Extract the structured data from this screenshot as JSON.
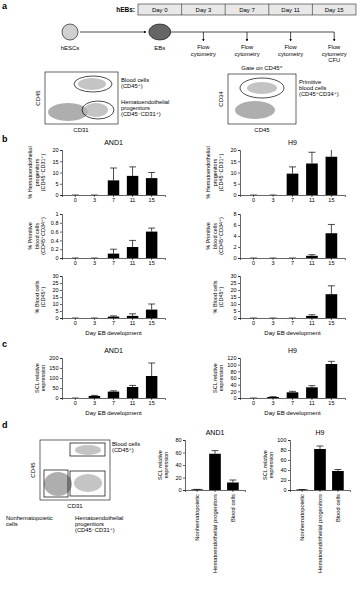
{
  "figure": {
    "panel_labels": [
      "a",
      "b",
      "c",
      "d"
    ],
    "schematic": {
      "header": "hEBs:",
      "days": [
        "Day 0",
        "Day 3",
        "Day 7",
        "Day 11",
        "Day 15"
      ],
      "start": "hESCs",
      "eb": "EBs",
      "steps": [
        [
          "Flow",
          "cytometry"
        ],
        [
          "Flow",
          "cytometry"
        ],
        [
          "Flow",
          "cytometry"
        ],
        [
          "Flow",
          "cytometry",
          "CFU"
        ]
      ]
    },
    "flow_a1": {
      "xlabel": "CD31",
      "ylabel": "CD45",
      "gates": [
        [
          "Blood cells",
          "(CD45⁺)"
        ],
        [
          "Hematoendothelial",
          "progenitors",
          "(CD45⁻CD31⁺)"
        ]
      ]
    },
    "flow_a2": {
      "title": "Gate on CD45⁺",
      "xlabel": "CD45",
      "ylabel": "CD34",
      "gates": [
        [
          "Primitive",
          "blood cells",
          "(CD45⁺CD34⁺)"
        ]
      ]
    },
    "flow_d": {
      "xlabel": "CD31",
      "ylabel": "CD45",
      "gates": [
        [
          "Blood cells",
          "(CD45⁺)"
        ],
        [
          "Hematoendothelial",
          "progenitors",
          "(CD45⁻CD31⁺)"
        ],
        [
          "Nonhematopoietic",
          "cells"
        ]
      ]
    }
  },
  "chart_data": [
    {
      "type": "bar",
      "title": "AND1",
      "categories": [
        "0",
        "3",
        "7",
        "11",
        "15"
      ],
      "values": [
        0,
        0,
        6.5,
        8.5,
        7.5
      ],
      "error": [
        0,
        0,
        5.5,
        4,
        2.5
      ],
      "color": "#000000",
      "ylim": [
        0,
        20
      ],
      "yticks": [
        0,
        5,
        10,
        15,
        20
      ],
      "ylabel": [
        "% Hematoendothelial",
        "progenitors",
        "(CD45⁻CD31⁺)"
      ]
    },
    {
      "type": "bar",
      "title": "H9",
      "categories": [
        "0",
        "3",
        "7",
        "11",
        "15"
      ],
      "values": [
        0,
        0,
        9.5,
        14,
        17
      ],
      "error": [
        0,
        0,
        3,
        5,
        4
      ],
      "color": "#000000",
      "ylim": [
        0,
        20
      ],
      "yticks": [
        0,
        5,
        10,
        15,
        20
      ],
      "ylabel": [
        "% Hematoendothelial",
        "progenitors",
        "(CD45⁻CD31⁺)"
      ]
    },
    {
      "type": "bar",
      "categories": [
        "0",
        "3",
        "7",
        "11",
        "15"
      ],
      "values": [
        0,
        0,
        0.1,
        0.25,
        0.6
      ],
      "error": [
        0,
        0,
        0.1,
        0.15,
        0.08
      ],
      "color": "#000000",
      "ylim": [
        0,
        1
      ],
      "yticks": [
        0,
        0.2,
        0.4,
        0.6,
        0.8,
        1
      ],
      "ylabel": [
        "% Primitive",
        "blood cells",
        "(CD45⁺CD34⁺)"
      ]
    },
    {
      "type": "bar",
      "categories": [
        "0",
        "3",
        "7",
        "11",
        "15"
      ],
      "values": [
        0,
        0,
        0,
        0.4,
        4.5
      ],
      "error": [
        0,
        0,
        0,
        0.2,
        1.6
      ],
      "color": "#000000",
      "ylim": [
        0,
        8
      ],
      "yticks": [
        0,
        2,
        4,
        6,
        8
      ],
      "ylabel": [
        "% Primitive",
        "blood cells",
        "(CD45⁺CD34⁺)"
      ]
    },
    {
      "type": "bar",
      "categories": [
        "0",
        "3",
        "7",
        "11",
        "15"
      ],
      "values": [
        0,
        0,
        1,
        1.5,
        6
      ],
      "error": [
        0,
        0,
        0.5,
        1.5,
        4
      ],
      "color": "#000000",
      "ylim": [
        0,
        30
      ],
      "yticks": [
        0,
        5,
        10,
        15,
        20,
        25,
        30
      ],
      "ylabel": [
        "% Blood cells",
        "(CD45⁺)"
      ],
      "xlabel": "Day EB development"
    },
    {
      "type": "bar",
      "categories": [
        "0",
        "3",
        "7",
        "11",
        "15"
      ],
      "values": [
        0,
        0,
        0,
        1.5,
        17
      ],
      "error": [
        0,
        0,
        0,
        0.8,
        6
      ],
      "color": "#000000",
      "ylim": [
        0,
        30
      ],
      "yticks": [
        0,
        5,
        10,
        15,
        20,
        25,
        30
      ],
      "ylabel": [
        "% Blood cells",
        "(CD45⁺)"
      ],
      "xlabel": "Day EB development"
    },
    {
      "type": "bar",
      "title": "AND1",
      "categories": [
        "0",
        "3",
        "7",
        "11",
        "15"
      ],
      "values": [
        0,
        10,
        32,
        55,
        110
      ],
      "error": [
        0,
        3,
        4,
        8,
        65
      ],
      "color": "#000000",
      "ylim": [
        0,
        200
      ],
      "yticks": [
        0,
        50,
        100,
        150,
        200
      ],
      "ylabel": [
        "SCL relative",
        "expression"
      ],
      "xlabel": "Day EB development"
    },
    {
      "type": "bar",
      "title": "H9",
      "categories": [
        "0",
        "3",
        "7",
        "11",
        "15"
      ],
      "values": [
        0,
        3,
        17,
        32,
        102
      ],
      "error": [
        0,
        1,
        3,
        5,
        8
      ],
      "color": "#000000",
      "ylim": [
        0,
        120
      ],
      "yticks": [
        0,
        20,
        40,
        60,
        80,
        100,
        120
      ],
      "ylabel": [
        "SCL relative",
        "expression"
      ],
      "xlabel": "Day EB development"
    },
    {
      "type": "bar",
      "title": "AND1",
      "categories": [
        "Nonhematopoietic",
        "Hematoendothelial progenitors",
        "Blood cells"
      ],
      "values": [
        1,
        58,
        12
      ],
      "error": [
        0,
        5,
        4
      ],
      "color": "#000000",
      "ylim": [
        0,
        80
      ],
      "yticks": [
        0,
        20,
        40,
        60,
        80
      ],
      "ylabel": [
        "SCL relative",
        "expression"
      ]
    },
    {
      "type": "bar",
      "title": "H9",
      "categories": [
        "Nonhematopoietic",
        "Hematoendothelial progenitors",
        "Blood cells"
      ],
      "values": [
        1,
        82,
        38
      ],
      "error": [
        0,
        6,
        3
      ],
      "color": "#000000",
      "ylim": [
        0,
        100
      ],
      "yticks": [
        0,
        20,
        40,
        60,
        80,
        100
      ],
      "ylabel": [
        "SCL relative",
        "expression"
      ]
    }
  ]
}
